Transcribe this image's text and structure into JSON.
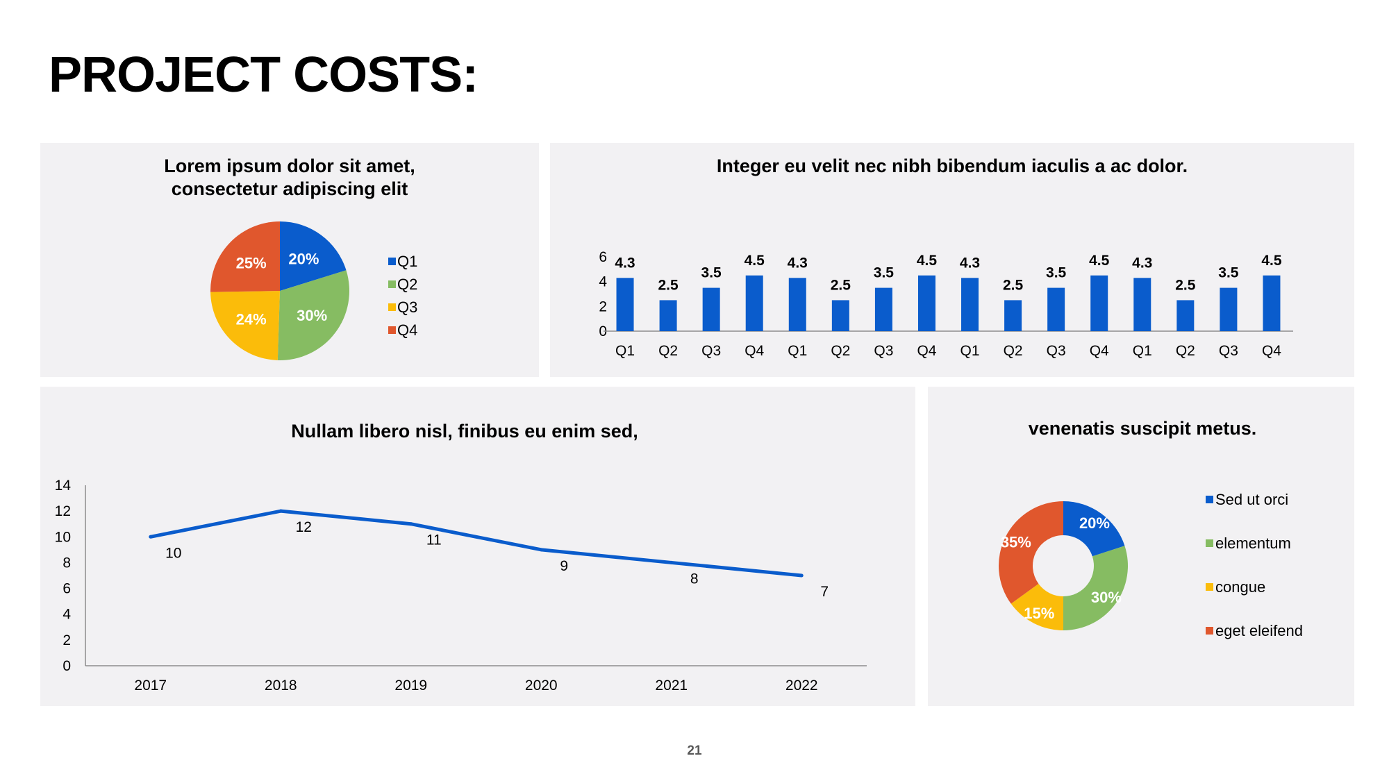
{
  "page": {
    "title": "PROJECT COSTS:",
    "page_number": "21"
  },
  "colors": {
    "blue": "#0a5ccc",
    "green": "#86bc62",
    "yellow": "#fbbc0a",
    "orange": "#e0572d",
    "panel_bg": "#f2f1f3",
    "axis": "#8c8c8c"
  },
  "chart_data": [
    {
      "type": "pie",
      "title": [
        "Lorem ipsum dolor sit amet,",
        "consectetur adipiscing elit"
      ],
      "categories": [
        "Q1",
        "Q2",
        "Q3",
        "Q4"
      ],
      "values": [
        20,
        30,
        24,
        25
      ],
      "labels": [
        "20%",
        "30%",
        "24%",
        "25%"
      ],
      "colors": [
        "#0a5ccc",
        "#86bc62",
        "#fbbc0a",
        "#e0572d"
      ],
      "legend": "right"
    },
    {
      "type": "bar",
      "title": "Integer eu velit nec nibh bibendum iaculis a ac dolor.",
      "categories": [
        "Q1",
        "Q2",
        "Q3",
        "Q4",
        "Q1",
        "Q2",
        "Q3",
        "Q4",
        "Q1",
        "Q2",
        "Q3",
        "Q4",
        "Q1",
        "Q2",
        "Q3",
        "Q4"
      ],
      "values": [
        4.3,
        2.5,
        3.5,
        4.5,
        4.3,
        2.5,
        3.5,
        4.5,
        4.3,
        2.5,
        3.5,
        4.5,
        4.3,
        2.5,
        3.5,
        4.5
      ],
      "labels": [
        "4.3",
        "2.5",
        "3.5",
        "4.5",
        "4.3",
        "2.5",
        "3.5",
        "4.5",
        "4.3",
        "2.5",
        "3.5",
        "4.5",
        "4.3",
        "2.5",
        "3.5",
        "4.5"
      ],
      "ylim": [
        0,
        6
      ],
      "yticks": [
        "0",
        "2",
        "4",
        "6"
      ],
      "color": "#0a5ccc",
      "grid": false
    },
    {
      "type": "line",
      "title": "Nullam libero nisl, finibus eu enim sed,",
      "x": [
        "2017",
        "2018",
        "2019",
        "2020",
        "2021",
        "2022"
      ],
      "values": [
        10,
        12,
        11,
        9,
        8,
        7
      ],
      "labels": [
        "10",
        "12",
        "11",
        "9",
        "8",
        "7"
      ],
      "ylim": [
        0,
        14
      ],
      "yticks": [
        "0",
        "2",
        "4",
        "6",
        "8",
        "10",
        "12",
        "14"
      ],
      "color": "#0a5ccc",
      "grid": false
    },
    {
      "type": "pie",
      "variant": "donut",
      "title": "venenatis suscipit metus.",
      "categories": [
        "Sed ut orci",
        "elementum",
        "congue",
        "eget eleifend"
      ],
      "values": [
        20,
        30,
        15,
        35
      ],
      "labels": [
        "20%",
        "30%",
        "15%",
        "35%"
      ],
      "colors": [
        "#0a5ccc",
        "#86bc62",
        "#fbbc0a",
        "#e0572d"
      ],
      "legend": "right"
    }
  ]
}
